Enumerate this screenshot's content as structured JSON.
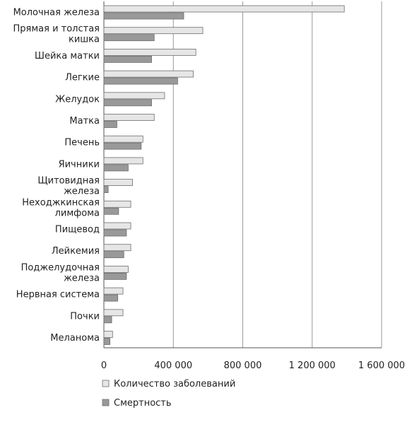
{
  "chart_data": {
    "type": "bar",
    "orientation": "horizontal",
    "categories": [
      "Молочная железа",
      "Прямая и толстая кишка",
      "Шейка матки",
      "Легкие",
      "Желудок",
      "Матка",
      "Печень",
      "Яичники",
      "Щитовидная железа",
      "Неходжкинская лимфома",
      "Пищевод",
      "Лейкемия",
      "Поджелудочная железа",
      "Нервная система",
      "Почки",
      "Меланома"
    ],
    "category_label_lines": [
      [
        "Молочная железа"
      ],
      [
        "Прямая и толстая",
        "кишка"
      ],
      [
        "Шейка матки"
      ],
      [
        "Легкие"
      ],
      [
        "Желудок"
      ],
      [
        "Матка"
      ],
      [
        "Печень"
      ],
      [
        "Яичники"
      ],
      [
        "Щитовидная",
        "железа"
      ],
      [
        "Неходжкинская",
        "лимфома"
      ],
      [
        "Пищевод"
      ],
      [
        "Лейкемия"
      ],
      [
        "Поджелудочная",
        "железа"
      ],
      [
        "Нервная система"
      ],
      [
        "Почки"
      ],
      [
        "Меланома"
      ]
    ],
    "series": [
      {
        "name": "Количество заболеваний",
        "color": "#e6e6e6",
        "values": [
          1385000,
          570000,
          530000,
          515000,
          350000,
          290000,
          225000,
          225000,
          165000,
          155000,
          155000,
          155000,
          140000,
          110000,
          110000,
          50000
        ]
      },
      {
        "name": "Смертность",
        "color": "#999999",
        "values": [
          460000,
          290000,
          275000,
          425000,
          275000,
          75000,
          215000,
          140000,
          25000,
          85000,
          130000,
          115000,
          130000,
          80000,
          45000,
          35000
        ]
      }
    ],
    "x_ticks": [
      "0",
      "400 000",
      "800 000",
      "1 200 000",
      "1 600 000"
    ],
    "xlim": [
      0,
      1600000
    ],
    "grid": "vertical",
    "legend_position": "bottom",
    "colors": {
      "incidence": "#e6e6e6",
      "mortality": "#999999",
      "bar_stroke": "#6e6e6e",
      "grid": "#9a9a9a",
      "axis": "#555555"
    }
  }
}
